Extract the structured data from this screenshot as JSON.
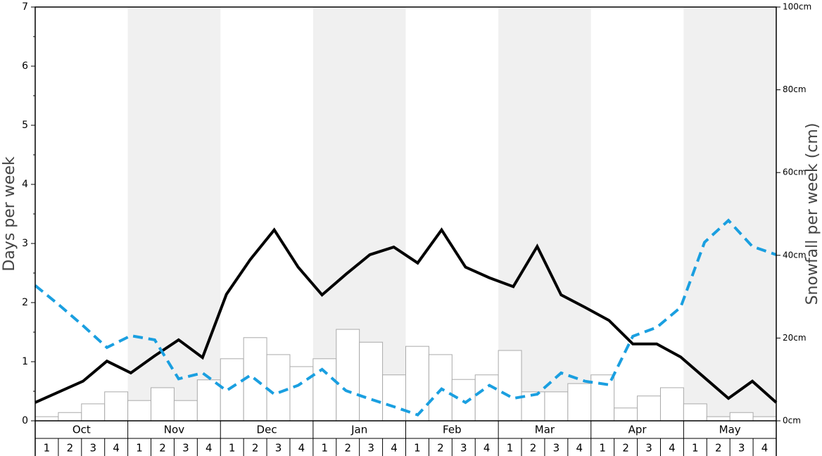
{
  "chart_data": {
    "type": "combo",
    "y_label": "Days per week",
    "y2_label": "Snowfall per week (cm)",
    "months": [
      "Oct",
      "Nov",
      "Dec",
      "Jan",
      "Feb",
      "Mar",
      "Apr",
      "May"
    ],
    "categories": [
      "1",
      "2",
      "3",
      "4",
      "1",
      "2",
      "3",
      "4",
      "1",
      "2",
      "3",
      "4",
      "1",
      "2",
      "3",
      "4",
      "1",
      "2",
      "3",
      "4",
      "1",
      "2",
      "3",
      "4",
      "1",
      "2",
      "3",
      "4",
      "1",
      "2",
      "3",
      "4"
    ],
    "ylim": [
      0,
      7
    ],
    "yticks": [
      0,
      1,
      2,
      3,
      4,
      5,
      6,
      7
    ],
    "y2lim": [
      0,
      100
    ],
    "y2ticks": [
      {
        "value": 0,
        "label": "0cm"
      },
      {
        "value": 20,
        "label": "20cm"
      },
      {
        "value": 40,
        "label": "40cm"
      },
      {
        "value": 60,
        "label": "60cm"
      },
      {
        "value": 80,
        "label": "80cm"
      },
      {
        "value": 100,
        "label": "100cm"
      }
    ],
    "shade_color": "#f0f0f0",
    "series": [
      {
        "type": "bar",
        "axis": "y2",
        "color": "#ffffff",
        "edge": "#aaaaaa",
        "values": [
          1.0,
          2.0,
          4.1,
          7.0,
          4.9,
          8.0,
          4.9,
          9.9,
          15.0,
          20.1,
          16.0,
          13.1,
          15.0,
          22.1,
          19.0,
          11.1,
          18.0,
          16.0,
          10.0,
          11.1,
          17.0,
          7.0,
          7.0,
          9.0,
          11.1,
          3.1,
          6.0,
          8.0,
          4.1,
          1.0,
          2.0,
          1.0
        ]
      },
      {
        "type": "line",
        "color": "#000000",
        "dashed": false,
        "values": [
          0.31,
          0.49,
          0.67,
          1.01,
          0.81,
          1.1,
          1.37,
          1.07,
          2.14,
          2.73,
          3.23,
          2.6,
          2.13,
          2.48,
          2.81,
          2.94,
          2.67,
          3.23,
          2.6,
          2.42,
          2.27,
          2.95,
          2.13,
          1.92,
          1.7,
          1.3,
          1.3,
          1.08,
          0.73,
          0.38,
          0.67,
          0.31
        ]
      },
      {
        "type": "line",
        "color": "#1a9fe0",
        "dashed": true,
        "values": [
          2.29,
          1.96,
          1.61,
          1.24,
          1.44,
          1.37,
          0.71,
          0.81,
          0.51,
          0.77,
          0.45,
          0.6,
          0.87,
          0.51,
          0.37,
          0.24,
          0.1,
          0.54,
          0.31,
          0.6,
          0.38,
          0.45,
          0.81,
          0.67,
          0.61,
          1.43,
          1.58,
          1.92,
          3.02,
          3.39,
          2.95,
          2.81
        ]
      }
    ]
  }
}
